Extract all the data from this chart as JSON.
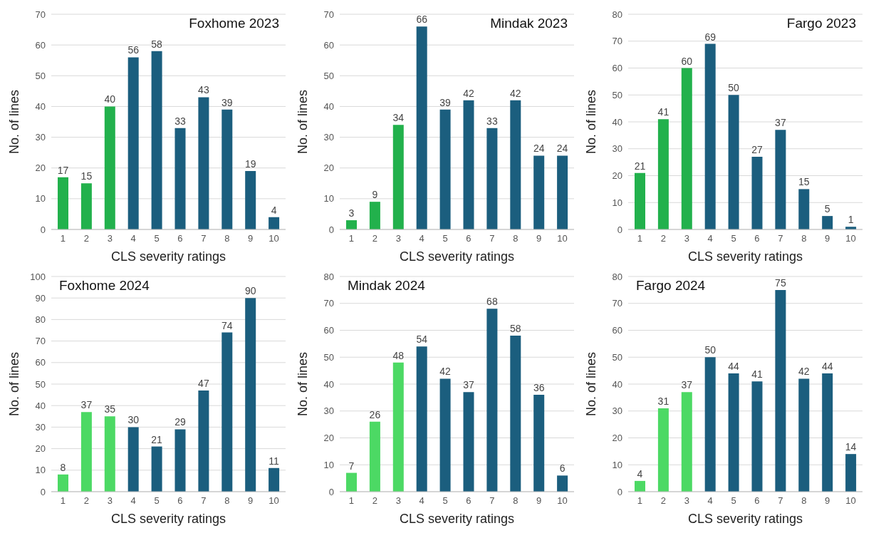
{
  "chart_data": [
    {
      "type": "bar",
      "title": "Foxhome 2023",
      "xlabel": "CLS severity ratings",
      "ylabel": "No. of lines",
      "categories": [
        "1",
        "2",
        "3",
        "4",
        "5",
        "6",
        "7",
        "8",
        "9",
        "10"
      ],
      "values": [
        17,
        15,
        40,
        56,
        58,
        33,
        43,
        39,
        19,
        4
      ],
      "colors": [
        "#22b14c",
        "#22b14c",
        "#22b14c",
        "#1b5e7e",
        "#1b5e7e",
        "#1b5e7e",
        "#1b5e7e",
        "#1b5e7e",
        "#1b5e7e",
        "#1b5e7e"
      ],
      "ylim": [
        0,
        70
      ],
      "yticks": [
        0,
        10,
        20,
        30,
        40,
        50,
        60,
        70
      ],
      "grid": "y",
      "data_labels": true
    },
    {
      "type": "bar",
      "title": "Mindak 2023",
      "xlabel": "CLS severity ratings",
      "ylabel": "No. of lines",
      "categories": [
        "1",
        "2",
        "3",
        "4",
        "5",
        "6",
        "7",
        "8",
        "9",
        "10"
      ],
      "values": [
        3,
        9,
        34,
        66,
        39,
        42,
        33,
        42,
        24,
        24
      ],
      "colors": [
        "#22b14c",
        "#22b14c",
        "#22b14c",
        "#1b5e7e",
        "#1b5e7e",
        "#1b5e7e",
        "#1b5e7e",
        "#1b5e7e",
        "#1b5e7e",
        "#1b5e7e"
      ],
      "ylim": [
        0,
        70
      ],
      "yticks": [
        0,
        10,
        20,
        30,
        40,
        50,
        60,
        70
      ],
      "grid": "y",
      "data_labels": true
    },
    {
      "type": "bar",
      "title": "Fargo 2023",
      "xlabel": "CLS severity ratings",
      "ylabel": "No. of lines",
      "categories": [
        "1",
        "2",
        "3",
        "4",
        "5",
        "6",
        "7",
        "8",
        "9",
        "10"
      ],
      "values": [
        21,
        41,
        60,
        69,
        50,
        27,
        37,
        15,
        5,
        1
      ],
      "colors": [
        "#22b14c",
        "#22b14c",
        "#22b14c",
        "#1b5e7e",
        "#1b5e7e",
        "#1b5e7e",
        "#1b5e7e",
        "#1b5e7e",
        "#1b5e7e",
        "#1b5e7e"
      ],
      "ylim": [
        0,
        80
      ],
      "yticks": [
        0,
        10,
        20,
        30,
        40,
        50,
        60,
        70,
        80
      ],
      "grid": "y",
      "data_labels": true
    },
    {
      "type": "bar",
      "title": "Foxhome 2024",
      "xlabel": "CLS severity ratings",
      "ylabel": "No. of lines",
      "categories": [
        "1",
        "2",
        "3",
        "4",
        "5",
        "6",
        "7",
        "8",
        "9",
        "10"
      ],
      "values": [
        8,
        37,
        35,
        30,
        21,
        29,
        47,
        74,
        90,
        11
      ],
      "colors": [
        "#4cd964",
        "#4cd964",
        "#4cd964",
        "#1b5e7e",
        "#1b5e7e",
        "#1b5e7e",
        "#1b5e7e",
        "#1b5e7e",
        "#1b5e7e",
        "#1b5e7e"
      ],
      "ylim": [
        0,
        100
      ],
      "yticks": [
        0,
        10,
        20,
        30,
        40,
        50,
        60,
        70,
        80,
        90,
        100
      ],
      "grid": "y",
      "data_labels": true
    },
    {
      "type": "bar",
      "title": "Mindak 2024",
      "xlabel": "CLS severity ratings",
      "ylabel": "No. of lines",
      "categories": [
        "1",
        "2",
        "3",
        "4",
        "5",
        "6",
        "7",
        "8",
        "9",
        "10"
      ],
      "values": [
        7,
        26,
        48,
        54,
        42,
        37,
        68,
        58,
        36,
        6
      ],
      "colors": [
        "#4cd964",
        "#4cd964",
        "#4cd964",
        "#1b5e7e",
        "#1b5e7e",
        "#1b5e7e",
        "#1b5e7e",
        "#1b5e7e",
        "#1b5e7e",
        "#1b5e7e"
      ],
      "ylim": [
        0,
        80
      ],
      "yticks": [
        0,
        10,
        20,
        30,
        40,
        50,
        60,
        70,
        80
      ],
      "grid": "y",
      "data_labels": true
    },
    {
      "type": "bar",
      "title": "Fargo 2024",
      "xlabel": "CLS severity ratings",
      "ylabel": "No. of lines",
      "categories": [
        "1",
        "2",
        "3",
        "4",
        "5",
        "6",
        "7",
        "8",
        "9",
        "10"
      ],
      "values": [
        4,
        31,
        37,
        50,
        44,
        41,
        75,
        42,
        44,
        14
      ],
      "colors": [
        "#4cd964",
        "#4cd964",
        "#4cd964",
        "#1b5e7e",
        "#1b5e7e",
        "#1b5e7e",
        "#1b5e7e",
        "#1b5e7e",
        "#1b5e7e",
        "#1b5e7e"
      ],
      "ylim": [
        0,
        80
      ],
      "yticks": [
        0,
        10,
        20,
        30,
        40,
        50,
        60,
        70,
        80
      ],
      "grid": "y",
      "data_labels": true
    }
  ]
}
